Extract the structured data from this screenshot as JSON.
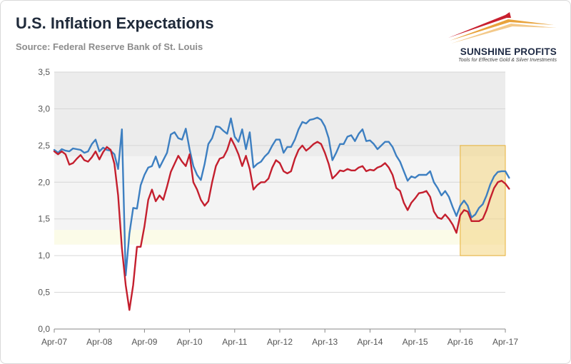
{
  "header": {
    "title": "U.S. Inflation Expectations",
    "source": "Source: Federal Reserve Bank of St. Louis"
  },
  "logo": {
    "name": "SUNSHINE PROFITS",
    "tagline": "Tools for Effective Gold & Silver Investments",
    "colors": [
      "#c8202f",
      "#e8a33c",
      "#f3c98a"
    ]
  },
  "chart_data": {
    "type": "line",
    "title": "U.S. Inflation Expectations",
    "xlabel": "",
    "ylabel": "",
    "ylim": [
      0,
      3.5
    ],
    "yticks": [
      "0,0",
      "0,5",
      "1,0",
      "1,5",
      "2,0",
      "2,5",
      "3,0",
      "3,5"
    ],
    "xlim": [
      0,
      120
    ],
    "x_ticks": [
      {
        "i": 0,
        "label": "Apr-07"
      },
      {
        "i": 12,
        "label": "Apr-08"
      },
      {
        "i": 24,
        "label": "Apr-09"
      },
      {
        "i": 36,
        "label": "Apr-10"
      },
      {
        "i": 48,
        "label": "Apr-11"
      },
      {
        "i": 60,
        "label": "Apr-12"
      },
      {
        "i": 72,
        "label": "Apr-13"
      },
      {
        "i": 84,
        "label": "Apr-14"
      },
      {
        "i": 96,
        "label": "Apr-15"
      },
      {
        "i": 108,
        "label": "Apr-16"
      },
      {
        "i": 120,
        "label": "Apr-17"
      }
    ],
    "grid": true,
    "series": [
      {
        "name": "Blue series",
        "color": "#3d7fc1",
        "values": [
          2.44,
          2.4,
          2.45,
          2.43,
          2.42,
          2.46,
          2.45,
          2.44,
          2.4,
          2.42,
          2.52,
          2.58,
          2.42,
          2.47,
          2.44,
          2.43,
          2.38,
          2.18,
          2.72,
          0.73,
          1.3,
          1.65,
          1.64,
          1.96,
          2.1,
          2.2,
          2.22,
          2.35,
          2.2,
          2.3,
          2.4,
          2.65,
          2.68,
          2.6,
          2.58,
          2.73,
          2.45,
          2.22,
          2.1,
          2.03,
          2.25,
          2.52,
          2.6,
          2.76,
          2.75,
          2.7,
          2.66,
          2.87,
          2.62,
          2.55,
          2.72,
          2.45,
          2.68,
          2.2,
          2.25,
          2.28,
          2.35,
          2.4,
          2.5,
          2.58,
          2.58,
          2.4,
          2.48,
          2.48,
          2.58,
          2.72,
          2.82,
          2.8,
          2.85,
          2.86,
          2.88,
          2.85,
          2.76,
          2.6,
          2.3,
          2.4,
          2.52,
          2.52,
          2.62,
          2.64,
          2.56,
          2.66,
          2.72,
          2.56,
          2.57,
          2.52,
          2.45,
          2.5,
          2.55,
          2.55,
          2.48,
          2.36,
          2.28,
          2.15,
          2.02,
          2.08,
          2.06,
          2.1,
          2.1,
          2.1,
          2.15,
          2.0,
          1.92,
          1.82,
          1.88,
          1.8,
          1.66,
          1.54,
          1.68,
          1.75,
          1.68,
          1.52,
          1.56,
          1.65,
          1.7,
          1.82,
          1.97,
          2.08,
          2.14,
          2.15,
          2.15,
          2.06
        ]
      },
      {
        "name": "Red series",
        "color": "#c41f2e",
        "values": [
          2.42,
          2.38,
          2.42,
          2.38,
          2.24,
          2.26,
          2.32,
          2.37,
          2.3,
          2.28,
          2.34,
          2.42,
          2.31,
          2.41,
          2.48,
          2.44,
          2.25,
          1.82,
          1.1,
          0.6,
          0.26,
          0.6,
          1.12,
          1.12,
          1.4,
          1.76,
          1.9,
          1.74,
          1.82,
          1.76,
          1.94,
          2.14,
          2.25,
          2.36,
          2.28,
          2.22,
          2.38,
          2.0,
          1.9,
          1.76,
          1.68,
          1.74,
          2.0,
          2.22,
          2.32,
          2.34,
          2.44,
          2.6,
          2.5,
          2.38,
          2.22,
          2.36,
          2.18,
          1.9,
          1.96,
          2.0,
          2.0,
          2.05,
          2.2,
          2.3,
          2.26,
          2.15,
          2.12,
          2.15,
          2.32,
          2.44,
          2.5,
          2.43,
          2.47,
          2.52,
          2.55,
          2.52,
          2.4,
          2.25,
          2.05,
          2.1,
          2.16,
          2.15,
          2.18,
          2.16,
          2.16,
          2.2,
          2.22,
          2.15,
          2.17,
          2.16,
          2.2,
          2.22,
          2.26,
          2.2,
          2.1,
          1.92,
          1.88,
          1.72,
          1.62,
          1.72,
          1.78,
          1.85,
          1.86,
          1.88,
          1.8,
          1.6,
          1.52,
          1.5,
          1.56,
          1.5,
          1.42,
          1.31,
          1.55,
          1.62,
          1.6,
          1.47,
          1.47,
          1.47,
          1.5,
          1.62,
          1.78,
          1.92,
          2.0,
          2.02,
          1.98,
          1.91
        ]
      }
    ],
    "background_bands": [
      {
        "from": 2.35,
        "to": 3.5,
        "color": "#ececec"
      },
      {
        "from": 1.35,
        "to": 2.35,
        "color": "#f4f4f4"
      },
      {
        "from": 1.15,
        "to": 1.35,
        "color": "#fbfbe8"
      }
    ],
    "highlight_box": {
      "x_from": 108,
      "x_to": 120,
      "y_from": 1.0,
      "y_to": 2.5,
      "fill": "#f5d98a",
      "stroke": "#e8b23a"
    }
  }
}
